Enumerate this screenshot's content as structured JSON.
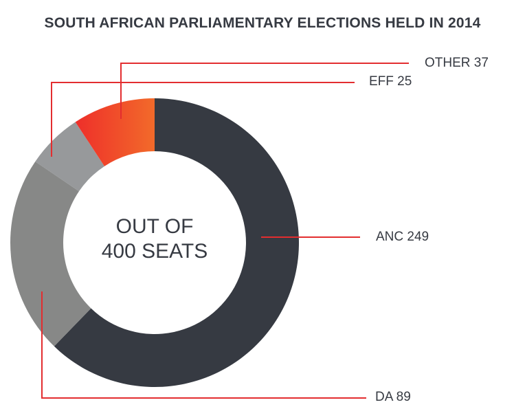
{
  "chart_data": {
    "type": "pie",
    "variant": "donut",
    "title": "SOUTH AFRICAN PARLIAMENTARY ELECTIONS HELD IN 2014",
    "center_text": [
      "OUT OF",
      "400 SEATS"
    ],
    "total": 400,
    "categories": [
      "ANC",
      "DA",
      "EFF",
      "OTHER"
    ],
    "values": [
      249,
      89,
      25,
      37
    ],
    "labels": [
      "ANC 249",
      "DA 89",
      "EFF 25",
      "OTHER 37"
    ],
    "colors": [
      "#363a42",
      "#878887",
      "#97999b",
      "#f05a28"
    ],
    "gradient": {
      "OTHER": [
        "#ee2f2a",
        "#f26a2a"
      ]
    },
    "leader_color": "#e32d2f",
    "start_angle_deg": 0,
    "direction": "clockwise"
  },
  "title": "SOUTH AFRICAN PARLIAMENTARY ELECTIONS HELD IN 2014",
  "center": {
    "line1": "OUT OF",
    "line2": "400 SEATS"
  },
  "legend_labels": {
    "other": "OTHER 37",
    "eff": "EFF 25",
    "anc": "ANC 249",
    "da": "DA 89"
  }
}
